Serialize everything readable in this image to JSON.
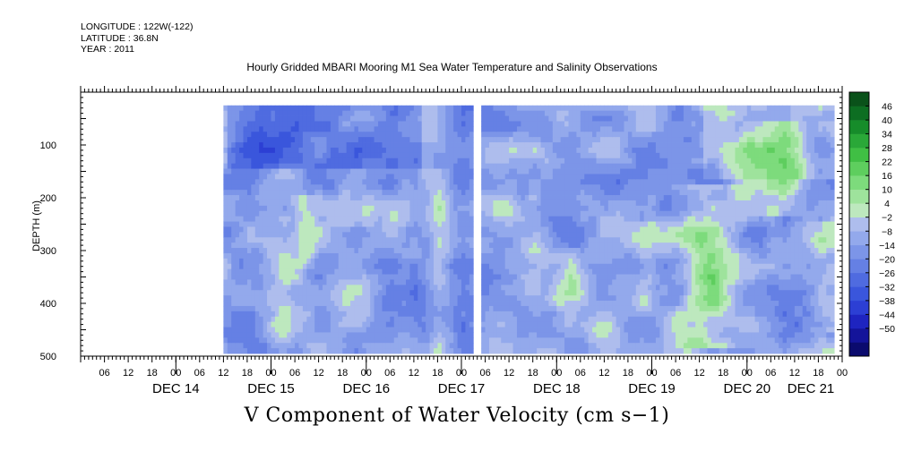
{
  "header": {
    "longitude": "LONGITUDE : 122W(-122)",
    "latitude": "LATITUDE : 36.8N",
    "year": "YEAR : 2011"
  },
  "chart_data": {
    "type": "heatmap",
    "title": "Hourly Gridded MBARI Mooring M1 Sea Water Temperature and Salinity Observations",
    "subtitle": "V Component of Water Velocity (cm s−1)",
    "ylabel": "DEPTH (m)",
    "xlabel": "",
    "x_start": "2011-12-13 00:00",
    "x_end": "2011-12-21 00:00",
    "data_x_range": [
      "2011-12-14 12:00",
      "2011-12-20 22:00"
    ],
    "gap_x": [
      "2011-12-17 03:00",
      "2011-12-17 05:00"
    ],
    "ylim": [
      500,
      0
    ],
    "data_y_range": [
      25,
      490
    ],
    "y_ticks": [
      100,
      200,
      300,
      400,
      500
    ],
    "hour_tick_labels": [
      "06",
      "12",
      "18",
      "00",
      "06",
      "12",
      "18",
      "00",
      "06",
      "12",
      "18",
      "00",
      "06",
      "12",
      "18",
      "00",
      "06",
      "12",
      "18",
      "00",
      "06",
      "12",
      "18",
      "00",
      "06",
      "12",
      "18",
      "00",
      "06",
      "12",
      "18",
      "00"
    ],
    "day_labels": [
      "DEC 14",
      "DEC 15",
      "DEC 16",
      "DEC 17",
      "DEC 18",
      "DEC 19",
      "DEC 20",
      "DEC 21"
    ],
    "colorbar": {
      "levels": [
        -50,
        -44,
        -38,
        -32,
        -26,
        -20,
        -14,
        -8,
        -2,
        4,
        10,
        16,
        22,
        28,
        34,
        40,
        46
      ],
      "label_text": [
        "46",
        "40",
        "34",
        "28",
        "22",
        "16",
        "10",
        "4",
        "−2",
        "−8",
        "−14",
        "−20",
        "−26",
        "−32",
        "−38",
        "−44",
        "−50"
      ],
      "colors_low_to_high": [
        "#0b0b6e",
        "#14149a",
        "#1e24c0",
        "#2c3fd4",
        "#3a56dc",
        "#4f6be0",
        "#6580e4",
        "#7c95e8",
        "#93a9ec",
        "#aebded",
        "#bde8be",
        "#9ee39c",
        "#7ddb7c",
        "#5ece5e",
        "#40bf44",
        "#2aa838",
        "#168c2a",
        "#0d6e22",
        "#0a521a"
      ]
    },
    "grid": false,
    "legend": "right colorbar"
  }
}
